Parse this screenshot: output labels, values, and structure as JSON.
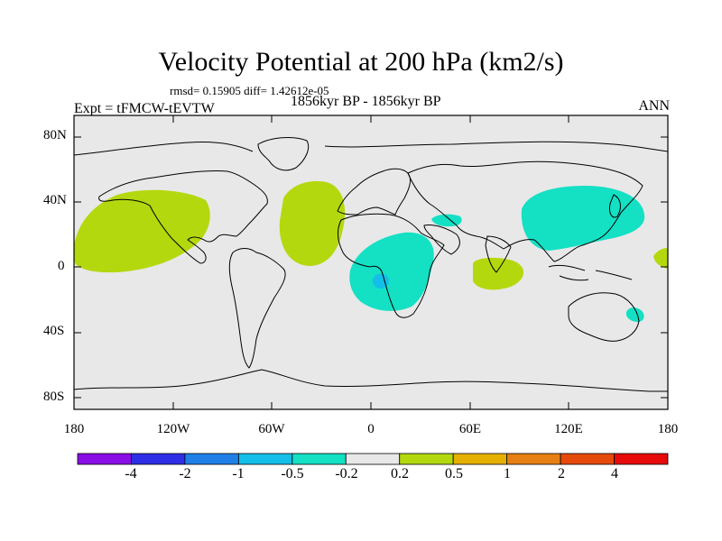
{
  "title": "Velocity Potential at 200 hPa (km2/s)",
  "stats_line": "rmsd= 0.15905 diff= 1.42612e-05",
  "subtitle": "1856kyr BP - 1856kyr BP",
  "experiment": "Expt = tFMCW-tEVTW",
  "season": "ANN",
  "axes": {
    "y_ticks": [
      "80N",
      "40N",
      "0",
      "40S",
      "80S"
    ],
    "x_ticks": [
      "180",
      "120W",
      "60W",
      "0",
      "60E",
      "120E",
      "180"
    ]
  },
  "colorbar": {
    "colors": [
      "#8a0ee6",
      "#2e2ee6",
      "#1f7fe6",
      "#13bfe8",
      "#14e0c4",
      "#e8e8e8",
      "#b4d80e",
      "#e6b000",
      "#e68014",
      "#e64a0a",
      "#e60a0a"
    ],
    "labels": [
      "-4",
      "-2",
      "-1",
      "-0.5",
      "-0.2",
      "0.2",
      "0.5",
      "1",
      "2",
      "4"
    ]
  },
  "colors": {
    "land_background": "#e8e8e8",
    "positive_anomaly": "#b4d80e",
    "negative_anomaly": "#14e0c4",
    "strong_negative": "#13bfe8"
  }
}
